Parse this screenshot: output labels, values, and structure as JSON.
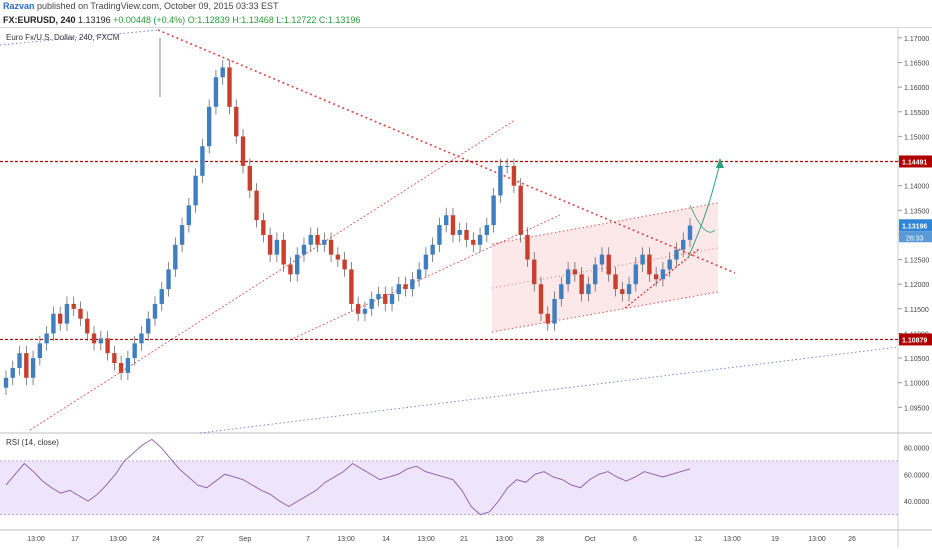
{
  "header": {
    "author": "Razvan",
    "published": "published on TradingView.com, October 09, 2015 03:33 EST"
  },
  "symbol_bar": {
    "symbol": "FX:EURUSD, 240",
    "last": "1.13196",
    "change": "+0.00448 (+0.4%)",
    "open": "O:1.12839",
    "high": "H:1.13468",
    "low": "L:1.12722",
    "close": "C:1.13196"
  },
  "chart_data": [
    {
      "type": "candlestick",
      "title": "Euro Fx/U.S. Dollar, 240, FXCM",
      "ylim": [
        1.09,
        1.172
      ],
      "y_ticks": [
        "1.17000",
        "1.16500",
        "1.16000",
        "1.15500",
        "1.15000",
        "1.14500",
        "1.14000",
        "1.13500",
        "1.13000",
        "1.12500",
        "1.12000",
        "1.11500",
        "1.11000",
        "1.10500",
        "1.10000",
        "1.09500"
      ],
      "x_ticks": [
        "13:00",
        "17",
        "13:00",
        "24",
        "27",
        "Sep",
        "7",
        "13:00",
        "14",
        "13:00",
        "21",
        "13:00",
        "28",
        "Oct",
        "6",
        "12",
        "13:00",
        "19",
        "13:00",
        "26"
      ],
      "series": [
        {
          "ohlc_path": [
            1.101,
            1.103,
            1.106,
            1.101,
            1.105,
            1.108,
            1.11,
            1.114,
            1.112,
            1.116,
            1.115,
            1.113,
            1.11,
            1.108,
            1.109,
            1.106,
            1.104,
            1.102,
            1.105,
            1.108,
            1.11,
            1.113,
            1.116,
            1.119,
            1.123,
            1.128,
            1.132,
            1.136,
            1.142,
            1.148,
            1.156,
            1.162,
            1.164,
            1.156,
            1.15,
            1.144,
            1.139,
            1.133,
            1.13,
            1.126,
            1.129,
            1.124,
            1.122,
            1.126,
            1.128,
            1.13,
            1.128,
            1.129,
            1.126,
            1.125,
            1.123,
            1.116,
            1.114,
            1.115,
            1.117,
            1.118,
            1.116,
            1.118,
            1.12,
            1.119,
            1.121,
            1.123,
            1.126,
            1.128,
            1.132,
            1.134,
            1.13,
            1.131,
            1.129,
            1.128,
            1.13,
            1.132,
            1.138,
            1.144,
            1.144,
            1.14,
            1.13,
            1.125,
            1.12,
            1.114,
            1.112,
            1.117,
            1.12,
            1.123,
            1.122,
            1.118,
            1.12,
            1.124,
            1.126,
            1.122,
            1.119,
            1.118,
            1.12,
            1.124,
            1.126,
            1.122,
            1.121,
            1.123,
            1.125,
            1.127,
            1.129,
            1.1319
          ]
        }
      ],
      "price_labels": {
        "resistance": "1.14491",
        "support": "1.10879",
        "last": "1.13196",
        "countdown": "26:33"
      },
      "lines": {
        "resistance": 1.14491,
        "support": 1.10879
      },
      "colors": {
        "up": "#3f7fbf",
        "down": "#c7402e",
        "level_line": "#b00000",
        "trend_red": "#e04040",
        "trend_blue": "#5a80d0",
        "channel_fill": "#f9d6d6",
        "projection": "#2f9f7f",
        "last_price": "#2f86d6"
      }
    },
    {
      "type": "line",
      "title": "RSI (14, close)",
      "ylim": [
        20,
        90
      ],
      "y_ticks": [
        "80.0000",
        "60.0000",
        "40.0000"
      ],
      "band": [
        30,
        70
      ],
      "series": [
        {
          "values": [
            52,
            60,
            68,
            62,
            55,
            50,
            46,
            48,
            44,
            40,
            45,
            52,
            60,
            70,
            76,
            82,
            86,
            80,
            72,
            64,
            58,
            52,
            50,
            55,
            60,
            58,
            56,
            52,
            48,
            45,
            40,
            36,
            40,
            44,
            48,
            54,
            58,
            62,
            68,
            64,
            60,
            56,
            58,
            60,
            64,
            66,
            62,
            60,
            58,
            56,
            48,
            36,
            30,
            32,
            40,
            50,
            56,
            54,
            60,
            62,
            58,
            56,
            52,
            50,
            56,
            60,
            62,
            58,
            55,
            58,
            62,
            60,
            58,
            60,
            62,
            64
          ]
        }
      ]
    }
  ]
}
